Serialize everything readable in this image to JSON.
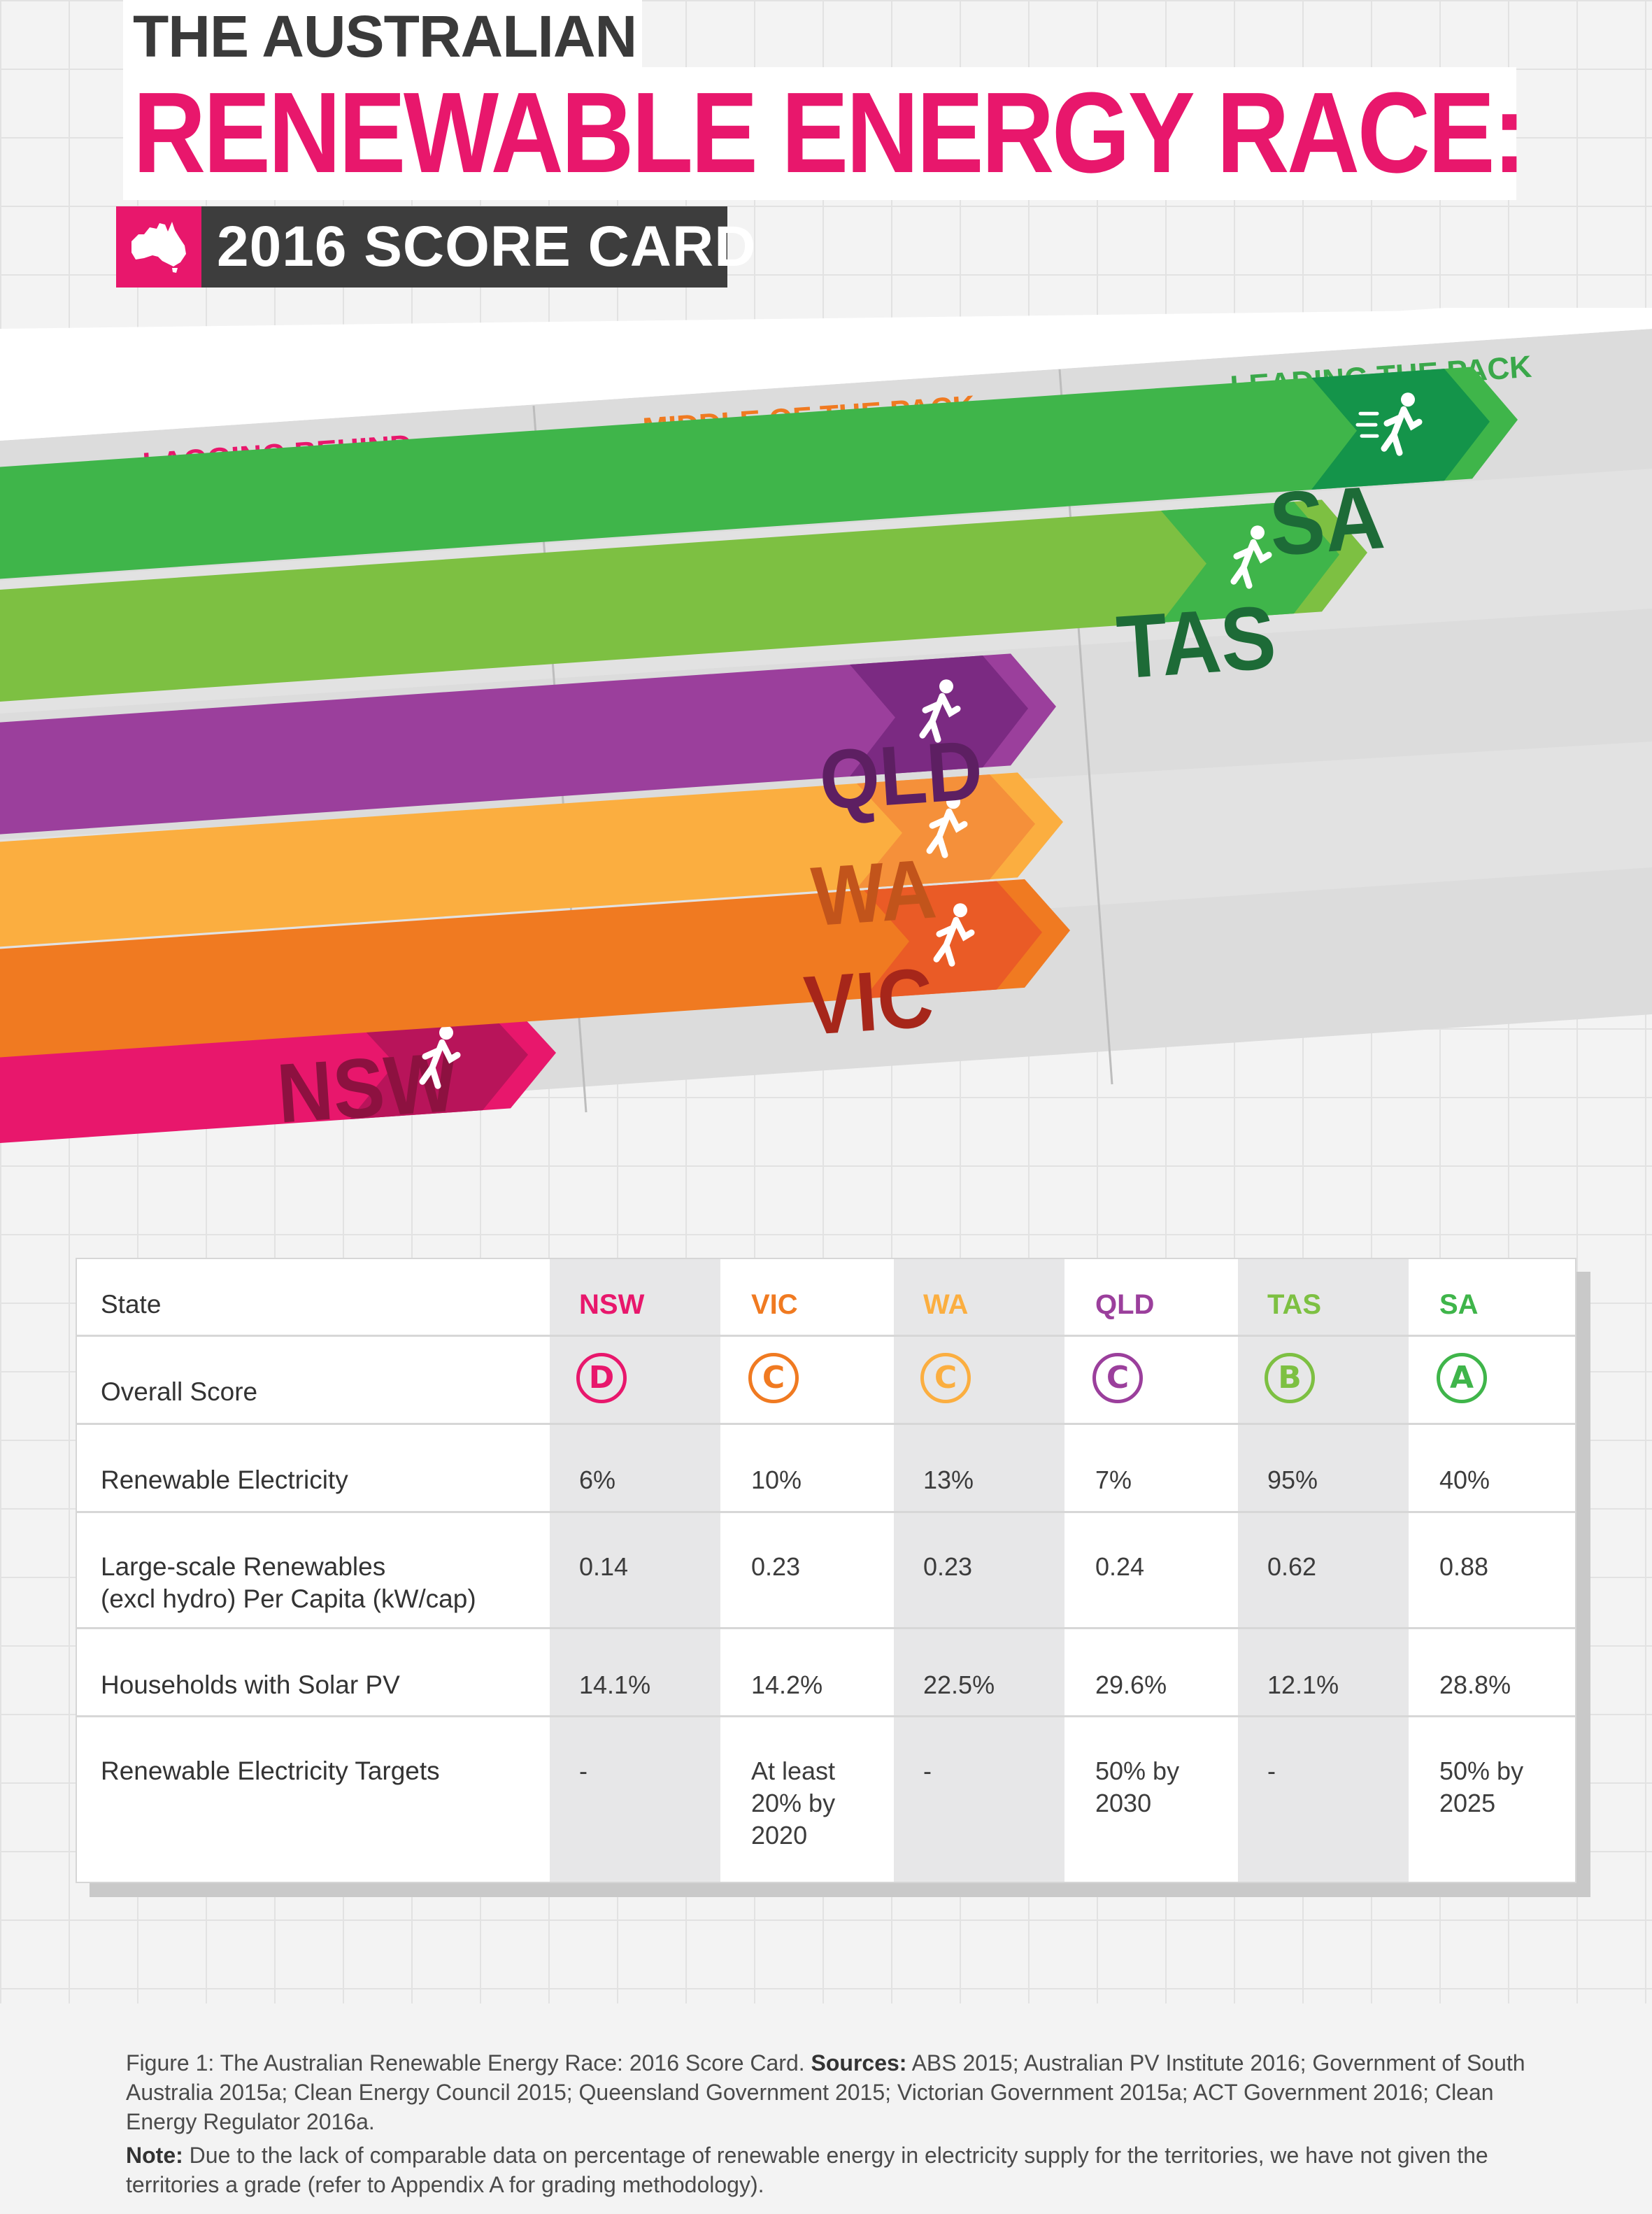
{
  "header": {
    "line1": "THE AUSTRALIAN",
    "line2": "RENEWABLE ENERGY RACE:",
    "line3": "2016 SCORE CARD",
    "flag_icon": "australia-map-icon",
    "accent_color": "#e8176c"
  },
  "race": {
    "zones": {
      "lagging": "LAGGING BEHIND",
      "middle": "MIDDLE OF THE PACK",
      "leading": "LEADING THE PACK"
    },
    "zone_colors": {
      "lagging": "#e8176c",
      "middle": "#f07a21",
      "leading": "#3aa84a"
    },
    "lanes": [
      {
        "state": "SA",
        "grade": "A",
        "bar_color": "#3fb54a",
        "text_color": "#1d6b37",
        "arrow_dark": "#14944a",
        "icon": "sprinting-runner-icon"
      },
      {
        "state": "TAS",
        "grade": "B",
        "bar_color": "#7dc042",
        "text_color": "#1d6b37",
        "arrow_dark": "#3fb54a",
        "icon": "running-person-icon"
      },
      {
        "state": "QLD",
        "grade": "C",
        "bar_color": "#9b3f9c",
        "text_color": "#5d1f62",
        "arrow_dark": "#7b2a82",
        "icon": "running-person-icon"
      },
      {
        "state": "WA",
        "grade": "C",
        "bar_color": "#fbae40",
        "text_color": "#c2541b",
        "arrow_dark": "#f5903a",
        "icon": "running-person-icon"
      },
      {
        "state": "VIC",
        "grade": "C",
        "bar_color": "#f07a21",
        "text_color": "#a6261a",
        "arrow_dark": "#ea5b26",
        "icon": "running-person-icon"
      },
      {
        "state": "NSW",
        "grade": "D",
        "bar_color": "#e8176c",
        "text_color": "#8d1140",
        "arrow_dark": "#b8145a",
        "icon": "walking-person-icon"
      }
    ]
  },
  "table": {
    "row_labels": {
      "state": "State",
      "score": "Overall Score",
      "renewable": "Renewable Electricity",
      "large_scale": "Large-scale Renewables",
      "large_scale_2": "(excl hydro) Per Capita (kW/cap)",
      "solar": "Households with Solar PV",
      "targets": "Renewable Electricity Targets"
    },
    "columns": [
      {
        "state": "NSW",
        "color": "#e8176c",
        "grade": "D",
        "renewable": "6%",
        "large_scale": "0.14",
        "solar": "14.1%",
        "target": [
          "-"
        ]
      },
      {
        "state": "VIC",
        "color": "#f07a21",
        "grade": "C",
        "renewable": "10%",
        "large_scale": "0.23",
        "solar": "14.2%",
        "target": [
          "At least",
          "20% by",
          "2020"
        ]
      },
      {
        "state": "WA",
        "color": "#fbae40",
        "grade": "C",
        "renewable": "13%",
        "large_scale": "0.23",
        "solar": "22.5%",
        "target": [
          "-"
        ]
      },
      {
        "state": "QLD",
        "color": "#9b3f9c",
        "grade": "C",
        "renewable": "7%",
        "large_scale": "0.24",
        "solar": "29.6%",
        "target": [
          "50% by",
          "2030"
        ]
      },
      {
        "state": "TAS",
        "color": "#7dc042",
        "grade": "B",
        "renewable": "95%",
        "large_scale": "0.62",
        "solar": "12.1%",
        "target": [
          "-"
        ]
      },
      {
        "state": "SA",
        "color": "#3fb54a",
        "grade": "A",
        "renewable": "40%",
        "large_scale": "0.88",
        "solar": "28.8%",
        "target": [
          "50% by",
          "2025"
        ]
      }
    ]
  },
  "caption": {
    "figure_label": "Figure 1:",
    "figure_text": "The Australian Renewable Energy Race: 2016 Score Card.",
    "sources_label": "Sources:",
    "sources_text": "ABS 2015; Australian PV Institute 2016; Government of South Australia 2015a; Clean Energy Council 2015; Queensland Government 2015; Victorian Government 2015a; ACT Government 2016; Clean Energy Regulator 2016a.",
    "note_label": "Note:",
    "note_text": "Due to the lack of comparable data on percentage of renewable energy in electricity supply for the territories, we have not given the territories a grade (refer to Appendix A for grading methodology)."
  }
}
